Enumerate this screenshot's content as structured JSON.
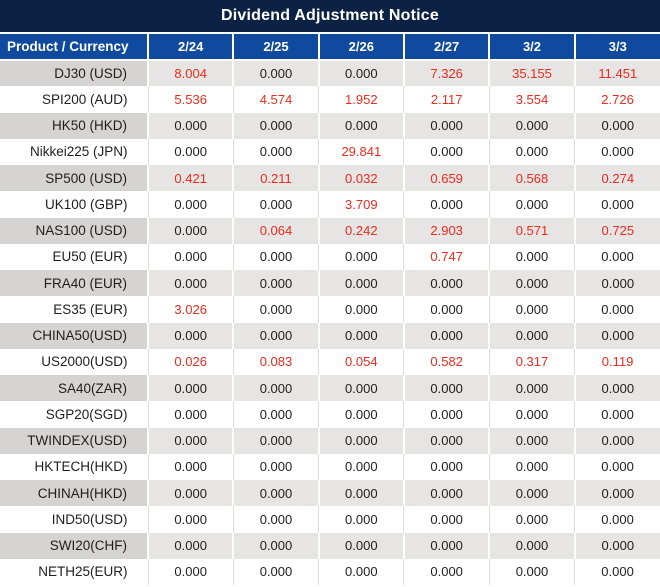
{
  "title": "Dividend Adjustment Notice",
  "colors": {
    "title_bg": "#0c2245",
    "header_bg": "#0f4a9e",
    "row_gray": "#e6e5e3",
    "row_gray_first": "#d5d4d2",
    "red": "#ec2a1e",
    "text": "#1e1e1e"
  },
  "header": {
    "product_label": "Product / Currency",
    "dates": [
      "2/24",
      "2/25",
      "2/26",
      "2/27",
      "3/2",
      "3/3"
    ]
  },
  "rows": [
    {
      "product": "DJ30 (USD)",
      "values": [
        "8.004",
        "0.000",
        "0.000",
        "7.326",
        "35.155",
        "11.451"
      ]
    },
    {
      "product": "SPI200 (AUD)",
      "values": [
        "5.536",
        "4.574",
        "1.952",
        "2.117",
        "3.554",
        "2.726"
      ]
    },
    {
      "product": "HK50 (HKD)",
      "values": [
        "0.000",
        "0.000",
        "0.000",
        "0.000",
        "0.000",
        "0.000"
      ]
    },
    {
      "product": "Nikkei225 (JPN)",
      "values": [
        "0.000",
        "0.000",
        "29.841",
        "0.000",
        "0.000",
        "0.000"
      ]
    },
    {
      "product": "SP500 (USD)",
      "values": [
        "0.421",
        "0.211",
        "0.032",
        "0.659",
        "0.568",
        "0.274"
      ]
    },
    {
      "product": "UK100 (GBP)",
      "values": [
        "0.000",
        "0.000",
        "3.709",
        "0.000",
        "0.000",
        "0.000"
      ]
    },
    {
      "product": "NAS100 (USD)",
      "values": [
        "0.000",
        "0.064",
        "0.242",
        "2.903",
        "0.571",
        "0.725"
      ]
    },
    {
      "product": "EU50 (EUR)",
      "values": [
        "0.000",
        "0.000",
        "0.000",
        "0.747",
        "0.000",
        "0.000"
      ]
    },
    {
      "product": "FRA40 (EUR)",
      "values": [
        "0.000",
        "0.000",
        "0.000",
        "0.000",
        "0.000",
        "0.000"
      ]
    },
    {
      "product": "ES35 (EUR)",
      "values": [
        "3.026",
        "0.000",
        "0.000",
        "0.000",
        "0.000",
        "0.000"
      ]
    },
    {
      "product": "CHINA50(USD)",
      "values": [
        "0.000",
        "0.000",
        "0.000",
        "0.000",
        "0.000",
        "0.000"
      ]
    },
    {
      "product": "US2000(USD)",
      "values": [
        "0.026",
        "0.083",
        "0.054",
        "0.582",
        "0.317",
        "0.119"
      ]
    },
    {
      "product": "SA40(ZAR)",
      "values": [
        "0.000",
        "0.000",
        "0.000",
        "0.000",
        "0.000",
        "0.000"
      ]
    },
    {
      "product": "SGP20(SGD)",
      "values": [
        "0.000",
        "0.000",
        "0.000",
        "0.000",
        "0.000",
        "0.000"
      ]
    },
    {
      "product": "TWINDEX(USD)",
      "values": [
        "0.000",
        "0.000",
        "0.000",
        "0.000",
        "0.000",
        "0.000"
      ]
    },
    {
      "product": "HKTECH(HKD)",
      "values": [
        "0.000",
        "0.000",
        "0.000",
        "0.000",
        "0.000",
        "0.000"
      ]
    },
    {
      "product": "CHINAH(HKD)",
      "values": [
        "0.000",
        "0.000",
        "0.000",
        "0.000",
        "0.000",
        "0.000"
      ]
    },
    {
      "product": "IND50(USD)",
      "values": [
        "0.000",
        "0.000",
        "0.000",
        "0.000",
        "0.000",
        "0.000"
      ]
    },
    {
      "product": "SWI20(CHF)",
      "values": [
        "0.000",
        "0.000",
        "0.000",
        "0.000",
        "0.000",
        "0.000"
      ]
    },
    {
      "product": "NETH25(EUR)",
      "values": [
        "0.000",
        "0.000",
        "0.000",
        "0.000",
        "0.000",
        "0.000"
      ]
    }
  ]
}
